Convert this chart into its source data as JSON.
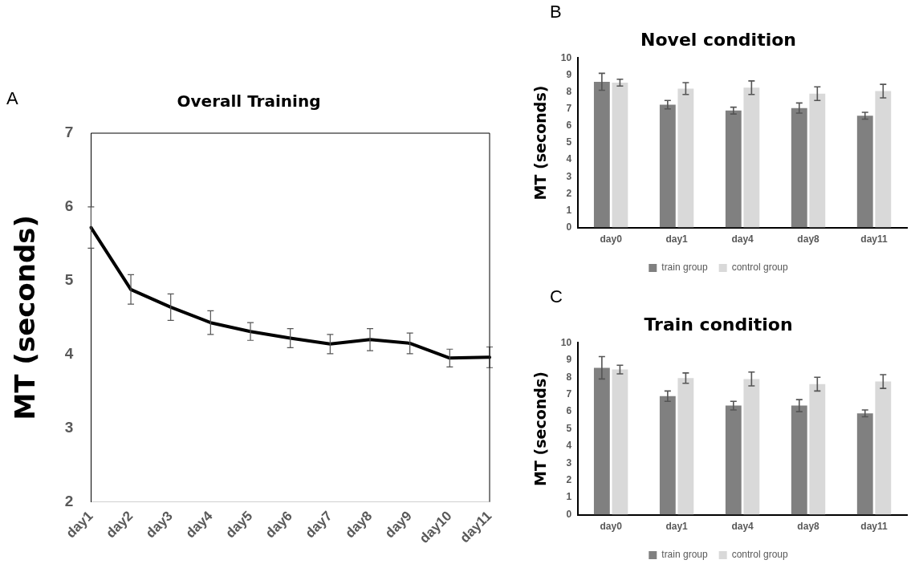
{
  "chart_data": [
    {
      "type": "line",
      "title": "Overall Training",
      "ylabel": "MT (seconds)",
      "annotations": [
        "A"
      ],
      "categories": [
        "day1",
        "day2",
        "day3",
        "day4",
        "day5",
        "day6",
        "day7",
        "day8",
        "day9",
        "day10",
        "day11"
      ],
      "series": [
        {
          "color": "#000000",
          "values": [
            5.72,
            4.88,
            4.64,
            4.43,
            4.31,
            4.22,
            4.14,
            4.2,
            4.15,
            3.95,
            3.96
          ],
          "errors": [
            0.28,
            0.2,
            0.18,
            0.16,
            0.12,
            0.13,
            0.13,
            0.15,
            0.14,
            0.12,
            0.14
          ]
        }
      ],
      "ylim": [
        2,
        7
      ],
      "yticks": [
        2,
        3,
        4,
        5,
        6,
        7
      ],
      "grid": false,
      "legend": false,
      "marker": "none",
      "line_style": "solid"
    },
    {
      "type": "bar",
      "title": "Novel condition",
      "ylabel": "MT (seconds)",
      "annotations": [
        "B"
      ],
      "categories": [
        "day0",
        "day1",
        "day4",
        "day8",
        "day11"
      ],
      "series": [
        {
          "name": "train group",
          "color": "#808080",
          "values": [
            8.6,
            7.25,
            6.9,
            7.05,
            6.6
          ],
          "errors": [
            0.5,
            0.25,
            0.2,
            0.3,
            0.2
          ]
        },
        {
          "name": "control group",
          "color": "#d9d9d9",
          "values": [
            8.55,
            8.2,
            8.25,
            7.9,
            8.05
          ],
          "errors": [
            0.2,
            0.35,
            0.4,
            0.4,
            0.4
          ]
        }
      ],
      "ylim": [
        0,
        10
      ],
      "yticks": [
        0,
        1,
        2,
        3,
        4,
        5,
        6,
        7,
        8,
        9,
        10
      ],
      "grid": false,
      "legend": "bottom"
    },
    {
      "type": "bar",
      "title": "Train condition",
      "ylabel": "MT (seconds)",
      "annotations": [
        "C"
      ],
      "categories": [
        "day0",
        "day1",
        "day4",
        "day8",
        "day11"
      ],
      "series": [
        {
          "name": "train group",
          "color": "#808080",
          "values": [
            8.55,
            6.9,
            6.35,
            6.35,
            5.9
          ],
          "errors": [
            0.65,
            0.3,
            0.25,
            0.35,
            0.2
          ]
        },
        {
          "name": "control group",
          "color": "#d9d9d9",
          "values": [
            8.45,
            7.95,
            7.9,
            7.6,
            7.75
          ],
          "errors": [
            0.25,
            0.3,
            0.4,
            0.4,
            0.4
          ]
        }
      ],
      "ylim": [
        0,
        10
      ],
      "yticks": [
        0,
        1,
        2,
        3,
        4,
        5,
        6,
        7,
        8,
        9,
        10
      ],
      "grid": false,
      "legend": "bottom"
    }
  ]
}
